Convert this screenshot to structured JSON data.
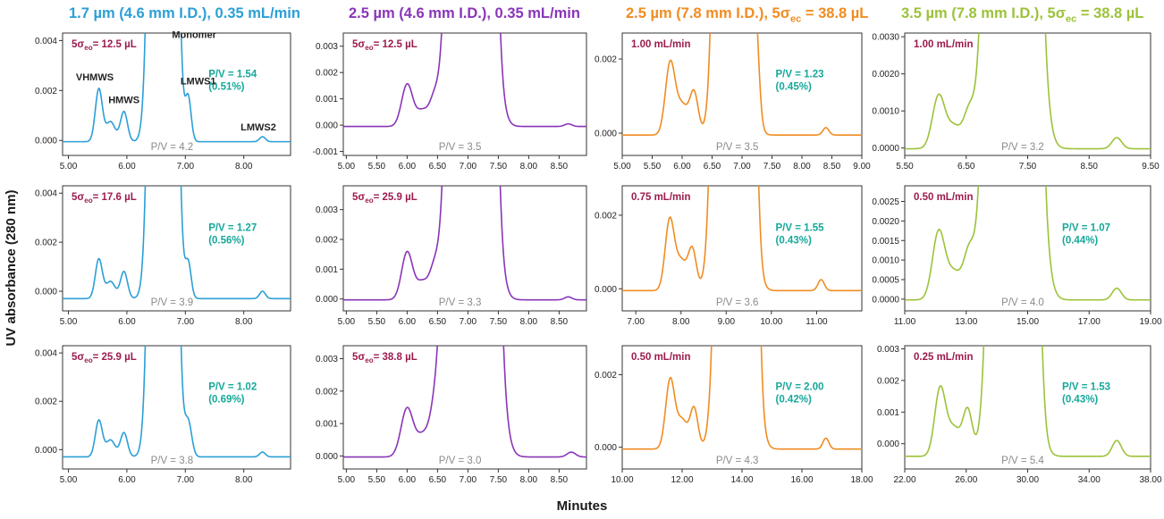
{
  "figure": {
    "ylabel": "UV absorbance (280 nm)",
    "xlabel": "Minutes"
  },
  "columns": [
    {
      "title": "1.7 µm (4.6 mm I.D.), 0.35 mL/min",
      "color": "#2b9fd6"
    },
    {
      "title": "2.5 µm (4.6 mm I.D.), 0.35 mL/min",
      "color": "#8a35b8"
    },
    {
      "title_main": "2.5 µm (7.8 mm I.D.), 5σ",
      "title_sub": "ec",
      "title_tail": " = 38.8 µL",
      "color": "#f08c22"
    },
    {
      "title_main": "3.5 µm (7.8 mm I.D.), 5σ",
      "title_sub": "ec",
      "title_tail": " = 38.8 µL",
      "color": "#9cc23a"
    }
  ],
  "label_colors": {
    "condition": "#9c1b4f",
    "pv_peak": "#15a89a",
    "pv_base": "#8a8a8a",
    "peak_names": "#222222"
  },
  "chart_data": [
    {
      "type": "line",
      "col": 0,
      "row": 0,
      "series_color": "#2b9fd6",
      "xlim": [
        4.9,
        8.8
      ],
      "ylim": [
        -0.0006,
        0.0043
      ],
      "xticks": [
        5.0,
        6.0,
        7.0,
        8.0
      ],
      "xtick_labels": [
        "5.00",
        "6.00",
        "7.00",
        "8.00"
      ],
      "yticks": [
        0,
        0.002,
        0.004
      ],
      "ytick_labels": [
        "0.000",
        "0.002",
        "0.004"
      ],
      "baseline": -5e-05,
      "peaks": [
        [
          5.52,
          0.0021,
          0.06
        ],
        [
          5.72,
          0.0008,
          0.08
        ],
        [
          5.95,
          0.0012,
          0.06
        ],
        [
          6.62,
          0.12,
          0.12
        ],
        [
          7.05,
          0.0017,
          0.05
        ],
        [
          8.32,
          0.0002,
          0.05
        ]
      ],
      "cond_main": "5σ",
      "cond_sub": "eo",
      "cond_tail": "= 12.5 µL",
      "pv_peak": "P/V = 1.54",
      "pv_pct": "(0.51%)",
      "pv_base": "P/V = 4.2",
      "peak_labels": [
        {
          "text": "VHMWS",
          "x": 5.45,
          "y": 0.0024
        },
        {
          "text": "HMWS",
          "x": 5.95,
          "y": 0.0015
        },
        {
          "text": "Monomer",
          "x": 7.15,
          "y": 0.0041
        },
        {
          "text": "LMWS1",
          "x": 7.22,
          "y": 0.00225
        },
        {
          "text": "LMWS2",
          "x": 8.25,
          "y": 0.0004
        }
      ]
    },
    {
      "type": "line",
      "col": 1,
      "row": 0,
      "series_color": "#8a35b8",
      "xlim": [
        4.95,
        8.95
      ],
      "ylim": [
        -0.00115,
        0.0035
      ],
      "xticks": [
        5.0,
        5.5,
        6.0,
        6.5,
        7.0,
        7.5,
        8.0,
        8.5
      ],
      "xtick_labels": [
        "5.00",
        "5.50",
        "6.00",
        "6.50",
        "7.00",
        "7.50",
        "8.00",
        "8.50"
      ],
      "yticks": [
        -0.001,
        0,
        0.001,
        0.002,
        0.003
      ],
      "ytick_labels": [
        "-0.001",
        "0.000",
        "0.001",
        "0.002",
        "0.003"
      ],
      "baseline": -5e-05,
      "peaks": [
        [
          6.0,
          0.0016,
          0.09
        ],
        [
          6.25,
          0.0006,
          0.1
        ],
        [
          6.45,
          0.0009,
          0.08
        ],
        [
          7.05,
          0.12,
          0.18
        ],
        [
          7.45,
          0.0012,
          0.06
        ],
        [
          8.65,
          0.0001,
          0.06
        ]
      ],
      "cond_main": "5σ",
      "cond_sub": "eo",
      "cond_tail": "= 12.5 µL",
      "pv_peak": "",
      "pv_pct": "",
      "pv_base": "P/V = 3.5",
      "peak_labels": []
    },
    {
      "type": "line",
      "col": 2,
      "row": 0,
      "series_color": "#f08c22",
      "xlim": [
        5.0,
        9.0
      ],
      "ylim": [
        -0.0006,
        0.0027
      ],
      "xticks": [
        5.0,
        5.5,
        6.0,
        6.5,
        7.0,
        7.5,
        8.0,
        8.5,
        9.0
      ],
      "xtick_labels": [
        "5.00",
        "5.50",
        "6.00",
        "6.50",
        "7.00",
        "7.50",
        "8.00",
        "8.50",
        "9.00"
      ],
      "yticks": [
        0,
        0.002
      ],
      "ytick_labels": [
        "0.000",
        "0.002"
      ],
      "baseline": -5e-05,
      "peaks": [
        [
          5.8,
          0.0019,
          0.08
        ],
        [
          6.0,
          0.0008,
          0.1
        ],
        [
          6.2,
          0.0011,
          0.07
        ],
        [
          6.85,
          0.12,
          0.14
        ],
        [
          7.25,
          0.0011,
          0.05
        ],
        [
          8.4,
          0.0002,
          0.05
        ]
      ],
      "cond_main": "1.00 mL/min",
      "cond_sub": "",
      "cond_tail": "",
      "pv_peak": "P/V = 1.23",
      "pv_pct": "(0.45%)",
      "pv_base": "P/V = 3.5",
      "peak_labels": []
    },
    {
      "type": "line",
      "col": 3,
      "row": 0,
      "series_color": "#9cc23a",
      "xlim": [
        5.5,
        9.5
      ],
      "ylim": [
        -0.0002,
        0.0031
      ],
      "xticks": [
        5.5,
        6.5,
        7.5,
        8.5,
        9.5
      ],
      "xtick_labels": [
        "5.50",
        "6.50",
        "7.50",
        "8.50",
        "9.50"
      ],
      "yticks": [
        0,
        0.001,
        0.002,
        0.003
      ],
      "ytick_labels": [
        "0.0000",
        "0.0010",
        "0.0020",
        "0.0030"
      ],
      "baseline": -2e-05,
      "peaks": [
        [
          6.05,
          0.0014,
          0.1
        ],
        [
          6.3,
          0.0006,
          0.12
        ],
        [
          6.55,
          0.0009,
          0.09
        ],
        [
          7.25,
          0.12,
          0.2
        ],
        [
          8.95,
          0.0003,
          0.08
        ]
      ],
      "cond_main": "1.00 mL/min",
      "cond_sub": "",
      "cond_tail": "",
      "pv_peak": "",
      "pv_pct": "",
      "pv_base": "P/V = 3.2",
      "peak_labels": []
    },
    {
      "type": "line",
      "col": 0,
      "row": 1,
      "series_color": "#2b9fd6",
      "xlim": [
        4.9,
        8.8
      ],
      "ylim": [
        -0.0008,
        0.0043
      ],
      "xticks": [
        5.0,
        6.0,
        7.0,
        8.0
      ],
      "xtick_labels": [
        "5.00",
        "6.00",
        "7.00",
        "8.00"
      ],
      "yticks": [
        0,
        0.002,
        0.004
      ],
      "ytick_labels": [
        "0.000",
        "0.002",
        "0.004"
      ],
      "baseline": -0.0003,
      "peaks": [
        [
          5.52,
          0.0016,
          0.06
        ],
        [
          5.72,
          0.0007,
          0.08
        ],
        [
          5.95,
          0.0011,
          0.06
        ],
        [
          6.62,
          0.12,
          0.12
        ],
        [
          7.05,
          0.0014,
          0.05
        ],
        [
          8.32,
          0.0003,
          0.05
        ]
      ],
      "cond_main": "5σ",
      "cond_sub": "eo",
      "cond_tail": "= 17.6 µL",
      "pv_peak": "P/V = 1.27",
      "pv_pct": "(0.56%)",
      "pv_base": "P/V = 3.9",
      "peak_labels": []
    },
    {
      "type": "line",
      "col": 1,
      "row": 1,
      "series_color": "#8a35b8",
      "xlim": [
        4.95,
        8.95
      ],
      "ylim": [
        -0.0004,
        0.0038
      ],
      "xticks": [
        5.0,
        5.5,
        6.0,
        6.5,
        7.0,
        7.5,
        8.0,
        8.5
      ],
      "xtick_labels": [
        "5.00",
        "5.50",
        "6.00",
        "6.50",
        "7.00",
        "7.50",
        "8.00",
        "8.50"
      ],
      "yticks": [
        0,
        0.001,
        0.002,
        0.003
      ],
      "ytick_labels": [
        "0.000",
        "0.001",
        "0.002",
        "0.003"
      ],
      "baseline": -3e-05,
      "peaks": [
        [
          6.0,
          0.0016,
          0.09
        ],
        [
          6.25,
          0.0006,
          0.1
        ],
        [
          6.45,
          0.0009,
          0.08
        ],
        [
          7.05,
          0.12,
          0.18
        ],
        [
          7.45,
          0.0012,
          0.06
        ],
        [
          8.65,
          0.0001,
          0.06
        ]
      ],
      "cond_main": "5σ",
      "cond_sub": "eo",
      "cond_tail": "= 25.9 µL",
      "pv_peak": "",
      "pv_pct": "",
      "pv_base": "P/V = 3.3",
      "peak_labels": []
    },
    {
      "type": "line",
      "col": 2,
      "row": 1,
      "series_color": "#f08c22",
      "xlim": [
        6.7,
        12.0
      ],
      "ylim": [
        -0.0006,
        0.0028
      ],
      "xticks": [
        7.0,
        8.0,
        9.0,
        10.0,
        11.0
      ],
      "xtick_labels": [
        "7.00",
        "8.00",
        "9.00",
        "10.00",
        "11.00"
      ],
      "yticks": [
        0,
        0.002
      ],
      "ytick_labels": [
        "0.000",
        "0.002"
      ],
      "baseline": -5e-05,
      "peaks": [
        [
          7.75,
          0.0019,
          0.1
        ],
        [
          8.0,
          0.0008,
          0.12
        ],
        [
          8.25,
          0.0011,
          0.09
        ],
        [
          9.15,
          0.12,
          0.2
        ],
        [
          9.65,
          0.0013,
          0.07
        ],
        [
          11.1,
          0.0003,
          0.07
        ]
      ],
      "cond_main": "0.75 mL/min",
      "cond_sub": "",
      "cond_tail": "",
      "pv_peak": "P/V = 1.55",
      "pv_pct": "(0.43%)",
      "pv_base": "P/V = 3.6",
      "peak_labels": []
    },
    {
      "type": "line",
      "col": 3,
      "row": 1,
      "series_color": "#9cc23a",
      "xlim": [
        11.0,
        19.0
      ],
      "ylim": [
        -0.0003,
        0.0029
      ],
      "xticks": [
        11.0,
        13.0,
        15.0,
        17.0,
        19.0
      ],
      "xtick_labels": [
        "11.00",
        "13.00",
        "15.00",
        "17.00",
        "19.00"
      ],
      "yticks": [
        0,
        0.0005,
        0.001,
        0.0015,
        0.002,
        0.0025
      ],
      "ytick_labels": [
        "0.0000",
        "0.0005",
        "0.0010",
        "0.0015",
        "0.0020",
        "0.0025"
      ],
      "baseline": -2e-05,
      "peaks": [
        [
          12.1,
          0.0017,
          0.2
        ],
        [
          12.6,
          0.0007,
          0.25
        ],
        [
          13.1,
          0.0011,
          0.18
        ],
        [
          14.5,
          0.12,
          0.4
        ],
        [
          15.3,
          0.0012,
          0.12
        ],
        [
          17.9,
          0.0003,
          0.15
        ]
      ],
      "cond_main": "0.50 mL/min",
      "cond_sub": "",
      "cond_tail": "",
      "pv_peak": "P/V = 1.07",
      "pv_pct": "(0.44%)",
      "pv_base": "P/V = 4.0",
      "peak_labels": []
    },
    {
      "type": "line",
      "col": 0,
      "row": 2,
      "series_color": "#2b9fd6",
      "xlim": [
        4.9,
        8.8
      ],
      "ylim": [
        -0.0008,
        0.0043
      ],
      "xticks": [
        5.0,
        6.0,
        7.0,
        8.0
      ],
      "xtick_labels": [
        "5.00",
        "6.00",
        "7.00",
        "8.00"
      ],
      "yticks": [
        0,
        0.002,
        0.004
      ],
      "ytick_labels": [
        "0.000",
        "0.002",
        "0.004"
      ],
      "baseline": -0.0003,
      "peaks": [
        [
          5.52,
          0.0015,
          0.06
        ],
        [
          5.72,
          0.0007,
          0.08
        ],
        [
          5.95,
          0.001,
          0.06
        ],
        [
          6.62,
          0.12,
          0.12
        ],
        [
          7.05,
          0.0014,
          0.06
        ],
        [
          8.32,
          0.0002,
          0.05
        ]
      ],
      "cond_main": "5σ",
      "cond_sub": "eo",
      "cond_tail": "= 25.9 µL",
      "pv_peak": "P/V = 1.02",
      "pv_pct": "(0.69%)",
      "pv_base": "P/V = 3.8",
      "peak_labels": []
    },
    {
      "type": "line",
      "col": 1,
      "row": 2,
      "series_color": "#8a35b8",
      "xlim": [
        4.95,
        8.95
      ],
      "ylim": [
        -0.0004,
        0.0034
      ],
      "xticks": [
        5.0,
        5.5,
        6.0,
        6.5,
        7.0,
        7.5,
        8.0,
        8.5
      ],
      "xtick_labels": [
        "5.00",
        "5.50",
        "6.00",
        "6.50",
        "7.00",
        "7.50",
        "8.00",
        "8.50"
      ],
      "yticks": [
        0,
        0.001,
        0.002,
        0.003
      ],
      "ytick_labels": [
        "0.000",
        "0.001",
        "0.002",
        "0.003"
      ],
      "baseline": -3e-05,
      "peaks": [
        [
          6.0,
          0.0015,
          0.1
        ],
        [
          6.25,
          0.0006,
          0.1
        ],
        [
          6.45,
          0.0009,
          0.09
        ],
        [
          7.05,
          0.12,
          0.2
        ],
        [
          7.45,
          0.0011,
          0.07
        ],
        [
          8.7,
          0.00015,
          0.07
        ]
      ],
      "cond_main": "5σ",
      "cond_sub": "eo",
      "cond_tail": "= 38.8 µL",
      "pv_peak": "",
      "pv_pct": "",
      "pv_base": "P/V = 3.0",
      "peak_labels": []
    },
    {
      "type": "line",
      "col": 2,
      "row": 2,
      "series_color": "#f08c22",
      "xlim": [
        10.0,
        18.0
      ],
      "ylim": [
        -0.0006,
        0.0028
      ],
      "xticks": [
        10.0,
        12.0,
        14.0,
        16.0,
        18.0
      ],
      "xtick_labels": [
        "10.00",
        "12.00",
        "14.00",
        "16.00",
        "18.00"
      ],
      "yticks": [
        0,
        0.002
      ],
      "ytick_labels": [
        "0.000",
        "0.002"
      ],
      "baseline": -5e-05,
      "peaks": [
        [
          11.6,
          0.0019,
          0.15
        ],
        [
          12.0,
          0.0008,
          0.18
        ],
        [
          12.4,
          0.0011,
          0.13
        ],
        [
          13.8,
          0.12,
          0.3
        ],
        [
          14.5,
          0.0014,
          0.1
        ],
        [
          16.8,
          0.0003,
          0.1
        ]
      ],
      "cond_main": "0.50 mL/min",
      "cond_sub": "",
      "cond_tail": "",
      "pv_peak": "P/V = 2.00",
      "pv_pct": "(0.42%)",
      "pv_base": "P/V = 4.3",
      "peak_labels": []
    },
    {
      "type": "line",
      "col": 3,
      "row": 2,
      "series_color": "#9cc23a",
      "xlim": [
        22.0,
        38.0
      ],
      "ylim": [
        -0.0008,
        0.0031
      ],
      "xticks": [
        22.0,
        26.0,
        30.0,
        34.0,
        38.0
      ],
      "xtick_labels": [
        "22.00",
        "26.00",
        "30.00",
        "34.00",
        "38.00"
      ],
      "yticks": [
        0,
        0.001,
        0.002,
        0.003
      ],
      "ytick_labels": [
        "0.000",
        "0.001",
        "0.002",
        "0.003"
      ],
      "baseline": -0.0004,
      "peaks": [
        [
          24.3,
          0.0021,
          0.35
        ],
        [
          25.2,
          0.0009,
          0.45
        ],
        [
          26.1,
          0.0014,
          0.3
        ],
        [
          29.0,
          0.12,
          0.7
        ],
        [
          30.7,
          0.0017,
          0.25
        ],
        [
          35.8,
          0.0005,
          0.3
        ]
      ],
      "cond_main": "0.25 mL/min",
      "cond_sub": "",
      "cond_tail": "",
      "pv_peak": "P/V = 1.53",
      "pv_pct": "(0.43%)",
      "pv_base": "P/V = 5.4",
      "peak_labels": []
    }
  ]
}
